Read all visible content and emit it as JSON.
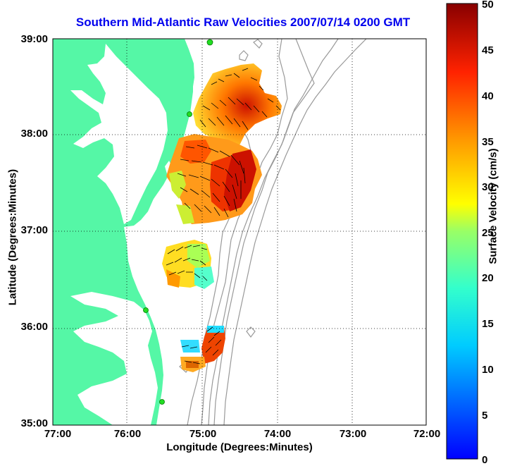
{
  "title": "Southern Mid-Atlantic Raw Velocities 2007/07/14 0200 GMT",
  "xlabel": "Longitude (Degrees:Minutes)",
  "ylabel": "Latitude (Degrees:Minutes)",
  "colorbar": {
    "label": "Surface Velocity (cm/s)",
    "min": 0,
    "max": 50,
    "ticks": [
      "0",
      "5",
      "10",
      "15",
      "20",
      "25",
      "30",
      "35",
      "40",
      "45",
      "50"
    ]
  },
  "map": {
    "lon_range": [
      -77,
      -72
    ],
    "lat_range": [
      35,
      39
    ],
    "x_ticks": [
      "77:00",
      "76:00",
      "75:00",
      "74:00",
      "73:00",
      "72:00"
    ],
    "y_ticks": [
      "39:00",
      "38:00",
      "37:00",
      "36:00",
      "35:00"
    ],
    "grid": true,
    "land_color": "#55f7a6",
    "water_color": "#ffffff",
    "bathymetry_color": "#999999"
  },
  "colors": {
    "title": "#0000ee",
    "station_marker": "#22dd22"
  }
}
